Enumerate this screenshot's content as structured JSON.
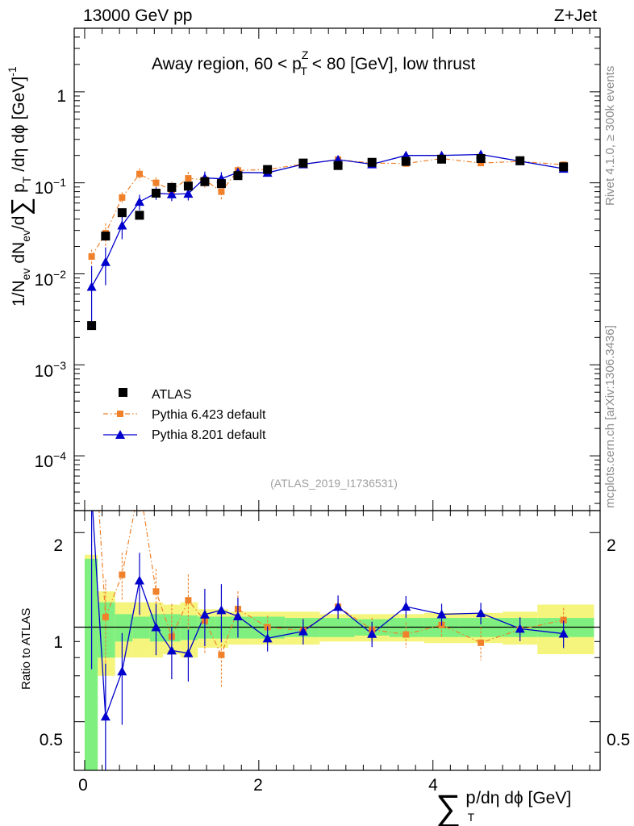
{
  "header": {
    "energy": "13000 GeV pp",
    "process": "Z+Jet",
    "title_pre": "Away region, 60 < p",
    "title_sup": "Z",
    "title_sub": "T",
    "title_post": " < 80 [GeV], low thrust",
    "analysis_tag": "(ATLAS_2019_I1736531)",
    "side_rivet": "Rivet 4.1.0, ≥ 300k events",
    "side_mcplots": "mcplots.cern.ch [arXiv:1306.3436]"
  },
  "axes": {
    "ylabel_main_1": "1/N",
    "ylabel_main_ev1": "ev",
    "ylabel_main_2": " dN",
    "ylabel_main_ev2": "ev",
    "ylabel_main_3": "/d",
    "ylabel_main_sum": "∑",
    "ylabel_main_p": " p",
    "ylabel_main_T": "T",
    "ylabel_main_4": " /dη dϕ  [GeV]",
    "ylabel_main_exp": "-1",
    "ylabel_ratio": "Ratio to ATLAS",
    "xlabel_sum": "∑",
    "xlabel_p": "p",
    "xlabel_T": "T",
    "xlabel_rest": "/dη dϕ [GeV]",
    "x_ticks": [
      "0",
      "2",
      "4"
    ],
    "y_ticks_main": [
      {
        "base": "1",
        "exp": ""
      },
      {
        "base": "10",
        "exp": "−1"
      },
      {
        "base": "10",
        "exp": "−2"
      },
      {
        "base": "10",
        "exp": "−3"
      },
      {
        "base": "10",
        "exp": "−4"
      }
    ],
    "y_ticks_ratio": [
      "2",
      "1",
      "0.5"
    ]
  },
  "legend": [
    "ATLAS",
    "Pythia 6.423 default",
    "Pythia 8.201 default"
  ],
  "colors": {
    "atlas": "#000000",
    "pythia6": "#f0812a",
    "pythia8": "#0000cc",
    "band_inner": "#7ff07f",
    "band_outer": "#f5f57d"
  },
  "chart_data": {
    "type": "scatter",
    "title": "Away region, 60 < pT^Z < 80 [GeV], low thrust",
    "xlabel": "∑ pT /dη dϕ [GeV]",
    "ylabel": "1/Nev dNev/d∑pT /dη dϕ [GeV]^-1",
    "xlim": [
      -0.12,
      5.92
    ],
    "ylim_main": [
      2.5e-05,
      5
    ],
    "yscale_main": "log",
    "ylim_ratio": [
      0.35,
      2.35
    ],
    "yscale_ratio": "log",
    "bins": [
      [
        0,
        0.15
      ],
      [
        0.15,
        0.35
      ],
      [
        0.35,
        0.55
      ],
      [
        0.55,
        0.75
      ],
      [
        0.75,
        0.9
      ],
      [
        0.9,
        1.1
      ],
      [
        1.1,
        1.3
      ],
      [
        1.3,
        1.5
      ],
      [
        1.5,
        1.65
      ],
      [
        1.65,
        1.9
      ],
      [
        1.9,
        2.3
      ],
      [
        2.3,
        2.7
      ],
      [
        2.7,
        3.1
      ],
      [
        3.1,
        3.5
      ],
      [
        3.5,
        3.9
      ],
      [
        3.9,
        4.3
      ],
      [
        4.3,
        4.8
      ],
      [
        4.8,
        5.2
      ],
      [
        5.2,
        5.85
      ]
    ],
    "x": [
      0.08,
      0.24,
      0.43,
      0.63,
      0.82,
      1.0,
      1.19,
      1.38,
      1.57,
      1.76,
      2.1,
      2.51,
      2.91,
      3.3,
      3.69,
      4.1,
      4.55,
      5.0,
      5.5
    ],
    "series": [
      {
        "name": "ATLAS",
        "values": [
          0.0027,
          0.026,
          0.047,
          0.044,
          0.077,
          0.089,
          0.092,
          0.103,
          0.098,
          0.12,
          0.14,
          0.165,
          0.155,
          0.168,
          0.172,
          0.182,
          0.185,
          0.175,
          0.15
        ],
        "band_inner": [
          0.65,
          0.2,
          0.1,
          0.08,
          0.1,
          0.1,
          0.09,
          0.08,
          0.08,
          0.08,
          0.08,
          0.07,
          0.07,
          0.06,
          0.07,
          0.07,
          0.07,
          0.07,
          0.07
        ],
        "band_outer": [
          0.7,
          0.3,
          0.2,
          0.2,
          0.2,
          0.18,
          0.2,
          0.14,
          0.14,
          0.12,
          0.12,
          0.12,
          0.1,
          0.1,
          0.1,
          0.11,
          0.11,
          0.12,
          0.18
        ]
      },
      {
        "name": "Pythia 6.423 default",
        "values": [
          0.0155,
          0.028,
          0.069,
          0.125,
          0.1,
          0.083,
          0.112,
          0.108,
          0.08,
          0.137,
          0.14,
          0.161,
          0.18,
          0.165,
          0.163,
          0.185,
          0.165,
          0.172,
          0.158
        ],
        "err": [
          0.003,
          0.008,
          0.01,
          0.02,
          0.015,
          0.02,
          0.02,
          0.02,
          0.015,
          0.015,
          0.008,
          0.01,
          0.01,
          0.01,
          0.01,
          0.01,
          0.015,
          0.01,
          0.01
        ]
      },
      {
        "name": "Pythia 8.201 default",
        "values": [
          0.0072,
          0.0135,
          0.034,
          0.062,
          0.077,
          0.075,
          0.076,
          0.113,
          0.111,
          0.13,
          0.129,
          0.16,
          0.18,
          0.16,
          0.2,
          0.2,
          0.205,
          0.173,
          0.143
        ],
        "err": [
          0.005,
          0.006,
          0.01,
          0.012,
          0.012,
          0.012,
          0.012,
          0.02,
          0.02,
          0.015,
          0.008,
          0.01,
          0.01,
          0.01,
          0.01,
          0.01,
          0.01,
          0.01,
          0.01
        ]
      }
    ]
  }
}
